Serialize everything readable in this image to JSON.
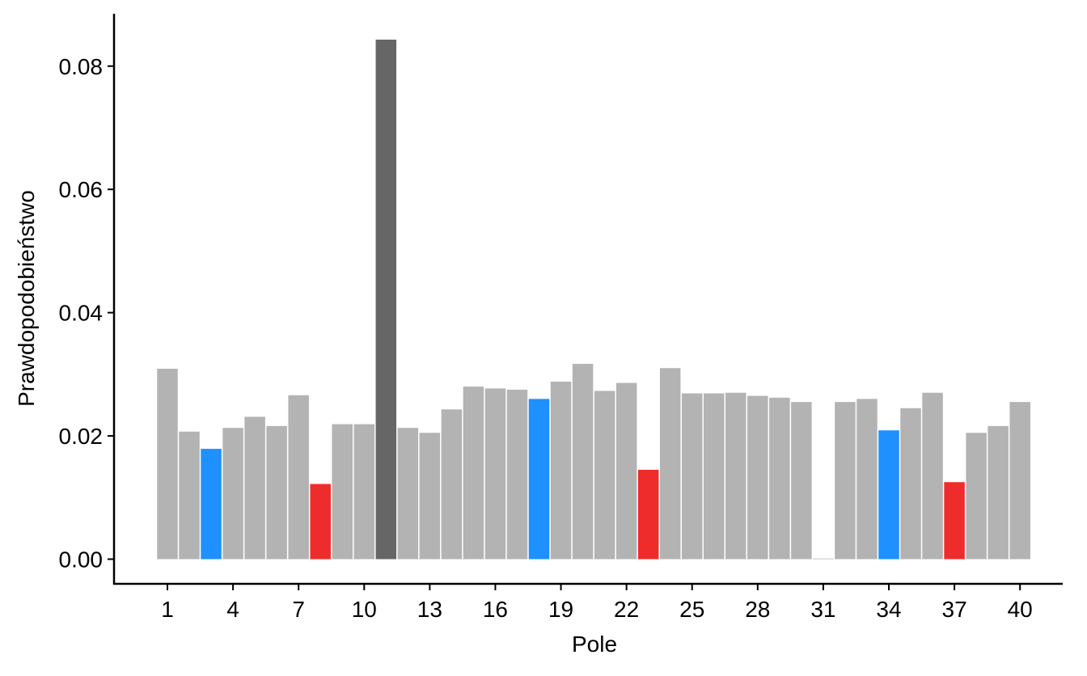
{
  "chart_data": {
    "type": "bar",
    "title": "",
    "xlabel": "Pole",
    "ylabel": "Prawdopodobieństwo",
    "ylim": [
      -0.004,
      0.0885
    ],
    "yticks": [
      "0.00",
      "0.02",
      "0.04",
      "0.06",
      "0.08"
    ],
    "ytick_values": [
      0,
      0.02,
      0.04,
      0.06,
      0.08
    ],
    "xticks": [
      "1",
      "4",
      "7",
      "10",
      "13",
      "16",
      "19",
      "22",
      "25",
      "28",
      "31",
      "34",
      "37",
      "40"
    ],
    "xtick_values": [
      1,
      4,
      7,
      10,
      13,
      16,
      19,
      22,
      25,
      28,
      31,
      34,
      37,
      40
    ],
    "grid": false,
    "legend": "none",
    "colors": {
      "default": "#b3b3b3",
      "blue": "#1e90ff",
      "red": "#ee2c2c",
      "dark": "#666666"
    },
    "categories": [
      1,
      2,
      3,
      4,
      5,
      6,
      7,
      8,
      9,
      10,
      11,
      12,
      13,
      14,
      15,
      16,
      17,
      18,
      19,
      20,
      21,
      22,
      23,
      24,
      25,
      26,
      27,
      28,
      29,
      30,
      31,
      32,
      33,
      34,
      35,
      36,
      37,
      38,
      39,
      40
    ],
    "values": [
      0.0309,
      0.0207,
      0.0179,
      0.0213,
      0.0231,
      0.0216,
      0.0266,
      0.0122,
      0.0219,
      0.0219,
      0.0843,
      0.0213,
      0.0205,
      0.0243,
      0.028,
      0.0277,
      0.0275,
      0.026,
      0.0288,
      0.0317,
      0.0273,
      0.0286,
      0.0145,
      0.031,
      0.0269,
      0.0269,
      0.027,
      0.0265,
      0.0262,
      0.0255,
      0.0,
      0.0255,
      0.026,
      0.0209,
      0.0245,
      0.027,
      0.0125,
      0.0205,
      0.0216,
      0.0255
    ],
    "bar_colors": [
      "default",
      "default",
      "blue",
      "default",
      "default",
      "default",
      "default",
      "red",
      "default",
      "default",
      "dark",
      "default",
      "default",
      "default",
      "default",
      "default",
      "default",
      "blue",
      "default",
      "default",
      "default",
      "default",
      "red",
      "default",
      "default",
      "default",
      "default",
      "default",
      "default",
      "default",
      "default",
      "default",
      "default",
      "blue",
      "default",
      "default",
      "red",
      "default",
      "default",
      "default"
    ]
  }
}
